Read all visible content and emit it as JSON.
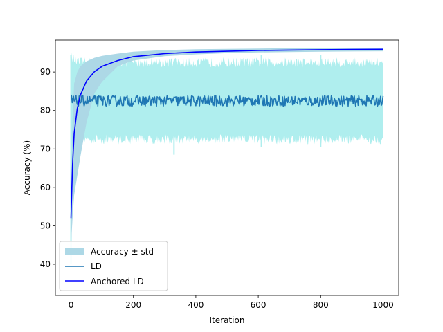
{
  "chart_data": {
    "type": "line",
    "title": "",
    "xlabel": "Iteration",
    "ylabel": "Accuracy (%)",
    "xlim": [
      -50,
      1050
    ],
    "ylim": [
      31.9,
      98.3
    ],
    "xticks": [
      0,
      200,
      400,
      600,
      800,
      1000
    ],
    "yticks": [
      40,
      50,
      60,
      70,
      80,
      90
    ],
    "grid": false,
    "legend_position": "lower-left",
    "legend": [
      "Accuracy ± std",
      "LD",
      "Anchored LD"
    ],
    "colors": {
      "ld_band": "#afeeee",
      "anchored_band": "#add8e6",
      "ld": "#1f77b4",
      "anchored": "#0000ff"
    },
    "series": [
      {
        "name": "Anchored LD",
        "x": [
          0,
          5,
          10,
          20,
          30,
          50,
          75,
          100,
          150,
          200,
          300,
          400,
          500,
          600,
          700,
          800,
          900,
          1000
        ],
        "y": [
          52,
          66,
          74,
          80.5,
          84,
          87.7,
          90.1,
          91.5,
          93,
          94,
          94.8,
          95.2,
          95.4,
          95.6,
          95.7,
          95.8,
          95.85,
          95.9
        ],
        "std_lower": [
          45,
          52,
          58,
          63,
          68,
          77,
          84.5,
          87.5,
          91.5,
          93,
          94.1,
          94.6,
          94.9,
          95.1,
          95.2,
          95.3,
          95.35,
          95.4
        ],
        "std_upper": [
          57,
          78,
          87,
          90,
          91.5,
          92.8,
          93.7,
          94.2,
          94.8,
          95.3,
          95.7,
          95.9,
          96,
          96.1,
          96.2,
          96.2,
          96.3,
          96.3
        ]
      },
      {
        "name": "LD",
        "x": [
          0,
          1000
        ],
        "mean": 82.5,
        "fluctuation": 1.4,
        "std_lower": 72.5,
        "std_upper": 92.5,
        "spikes": [
          {
            "x": 0,
            "low": 40,
            "high": 94.5
          },
          {
            "x": 330,
            "low": 68.5,
            "high": 92
          },
          {
            "x": 610,
            "low": 70.5,
            "high": 94.5
          },
          {
            "x": 800,
            "low": 70.5,
            "high": 94.5
          }
        ]
      }
    ]
  }
}
